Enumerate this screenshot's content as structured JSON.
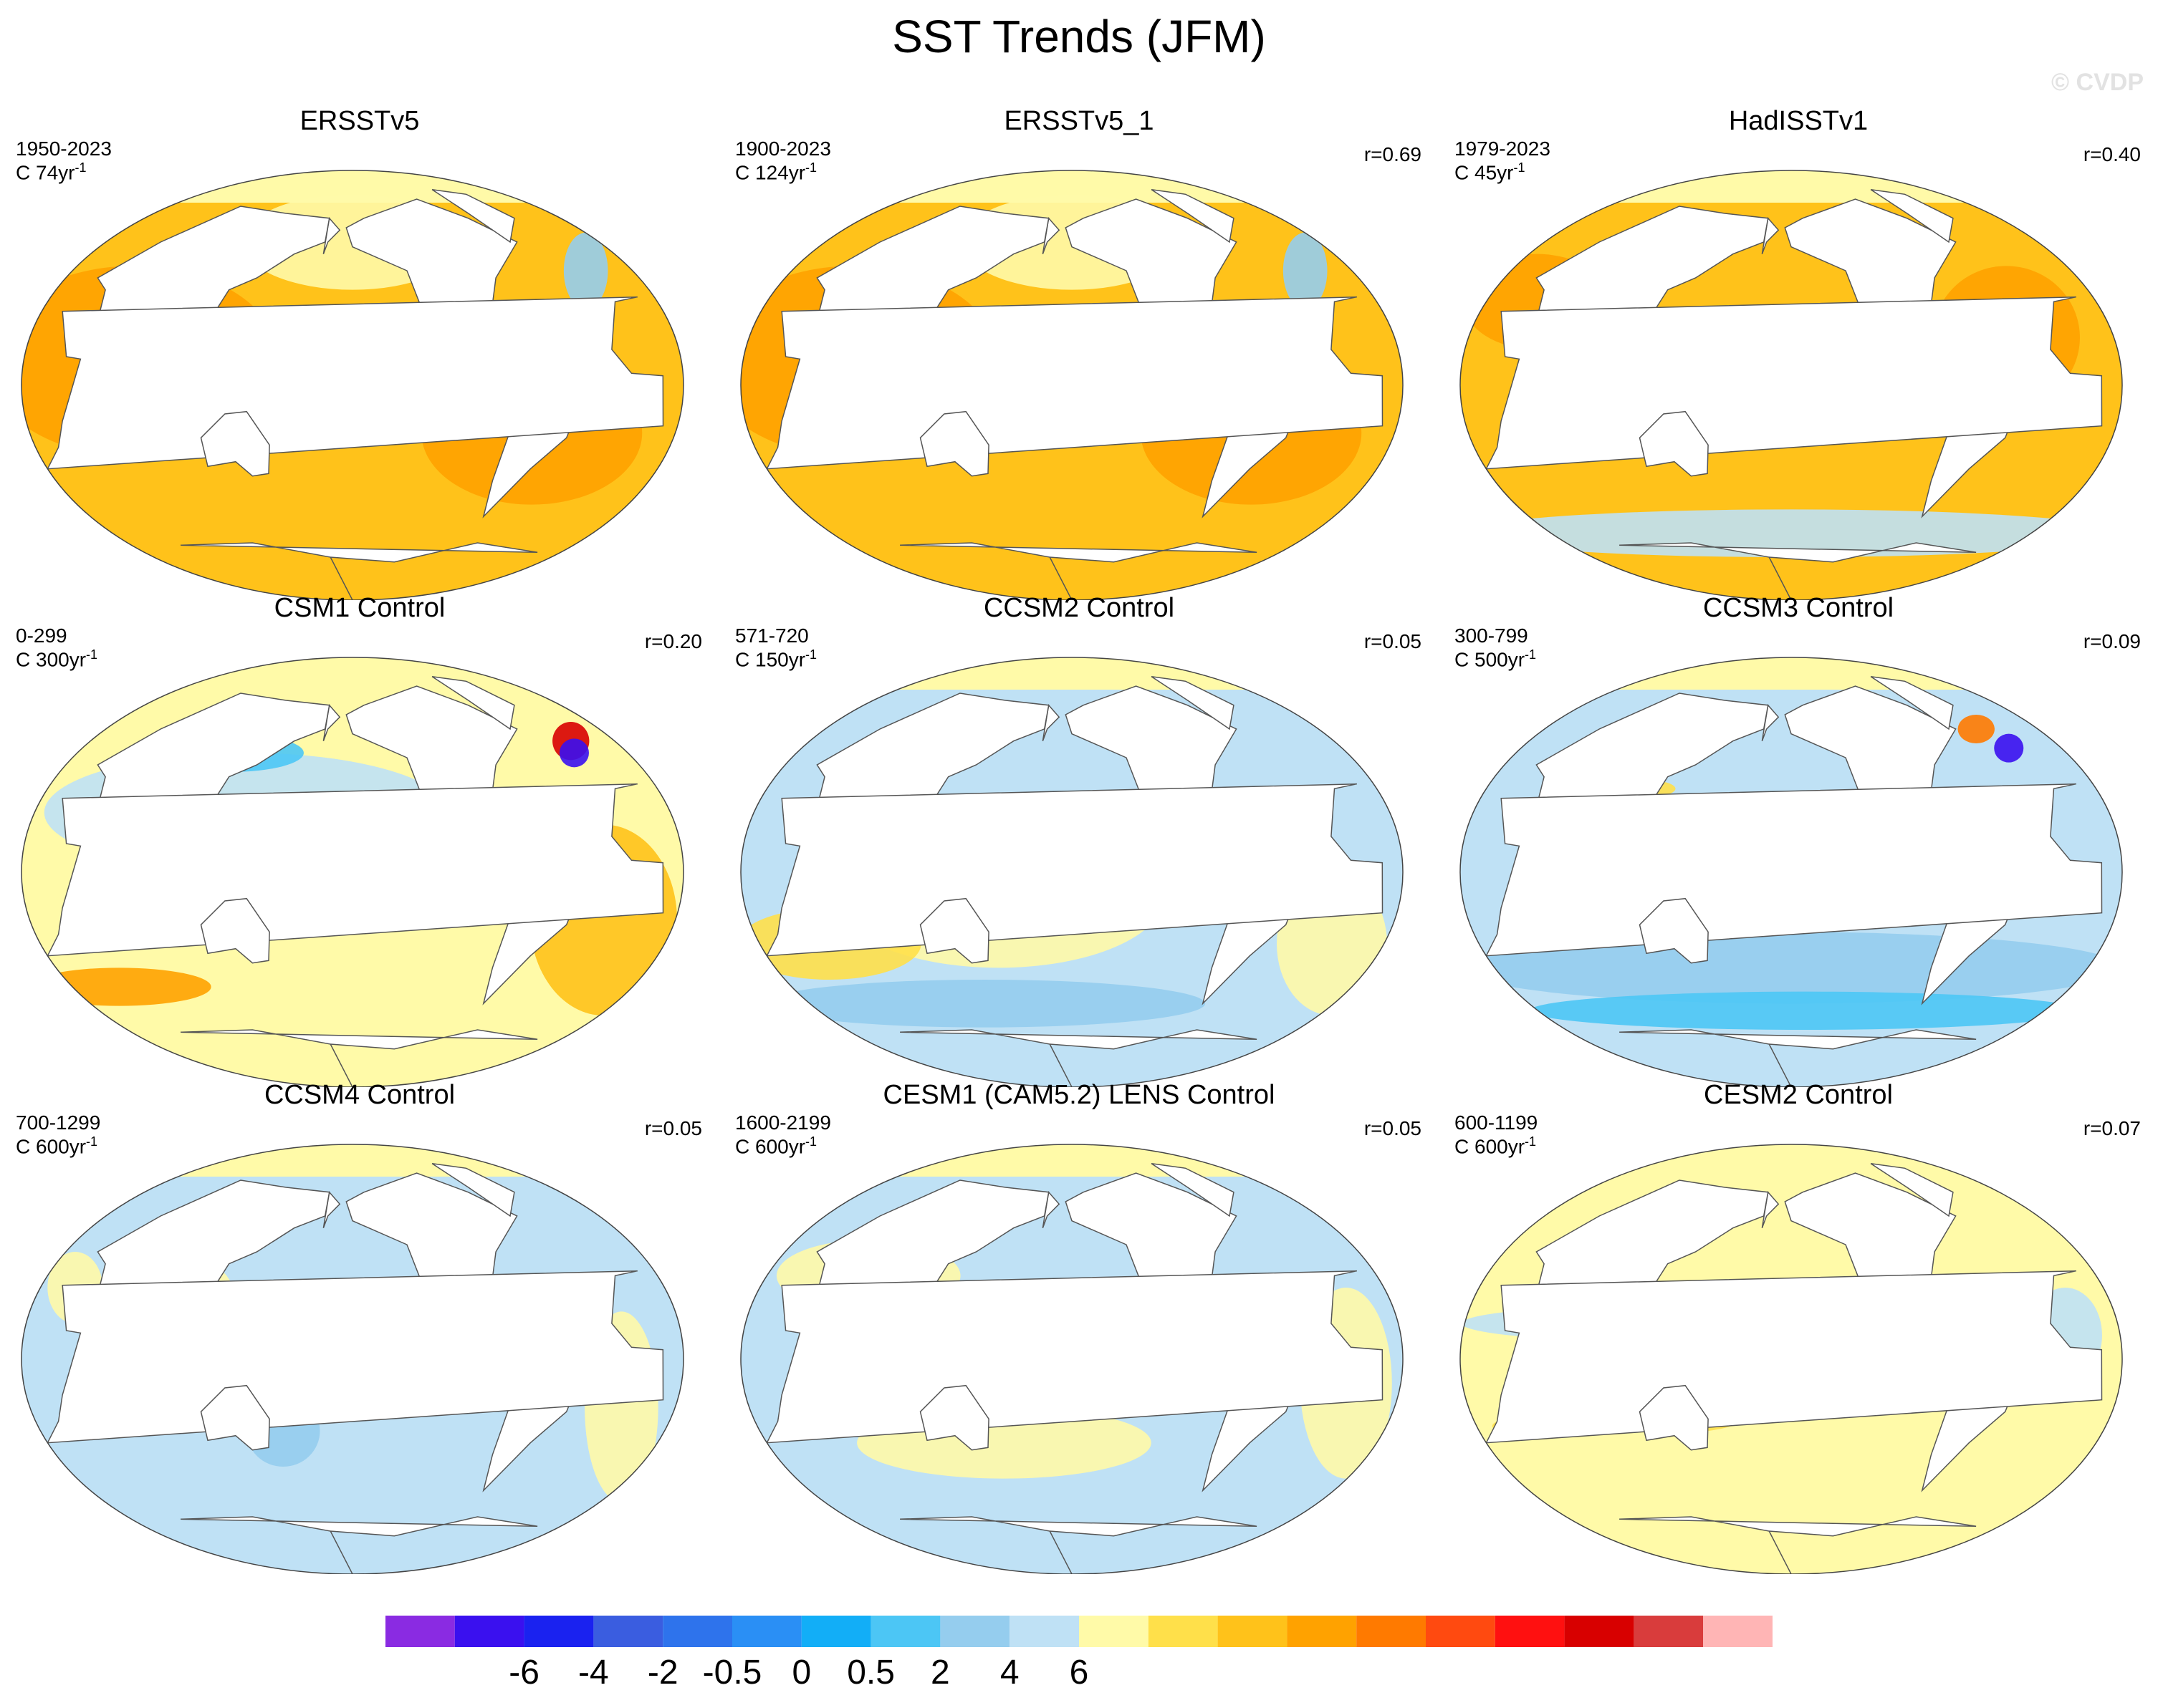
{
  "title": "SST Trends (JFM)",
  "watermark": "© CVDP",
  "trend_prefix": "C ",
  "trend_units": "yr",
  "trend_exponent": "-1",
  "panels": [
    {
      "title": "ERSSTv5",
      "years": "1950-2023",
      "trend": "74",
      "corr": "",
      "style": "warm"
    },
    {
      "title": "ERSSTv5_1",
      "years": "1900-2023",
      "trend": "124",
      "corr": "r=0.69",
      "style": "warm"
    },
    {
      "title": "HadISSTv1",
      "years": "1979-2023",
      "trend": "45",
      "corr": "r=0.40",
      "style": "had"
    },
    {
      "title": "CSM1 Control",
      "years": "0-299",
      "trend": "300",
      "corr": "r=0.20",
      "style": "mixwarm"
    },
    {
      "title": "CCSM2 Control",
      "years": "571-720",
      "trend": "150",
      "corr": "r=0.05",
      "style": "mix"
    },
    {
      "title": "CCSM3 Control",
      "years": "300-799",
      "trend": "500",
      "corr": "r=0.09",
      "style": "cool"
    },
    {
      "title": "CCSM4 Control",
      "years": "700-1299",
      "trend": "600",
      "corr": "r=0.05",
      "style": "coolmix"
    },
    {
      "title": "CESM1 (CAM5.2) LENS Control",
      "years": "1600-2199",
      "trend": "600",
      "corr": "r=0.05",
      "style": "coolmix2"
    },
    {
      "title": "CESM2 Control",
      "years": "600-1199",
      "trend": "600",
      "corr": "r=0.07",
      "style": "pale"
    }
  ],
  "colorbar": {
    "colors": [
      "#8a2be2",
      "#3a10ef",
      "#1a22f0",
      "#3a5de0",
      "#2e73ec",
      "#2a8ff5",
      "#12aef7",
      "#4cc6f5",
      "#95cdee",
      "#bfe1f5",
      "#fffaa8",
      "#ffe04a",
      "#ffc21a",
      "#ffa200",
      "#ff7a00",
      "#ff4a10",
      "#ff1010",
      "#d80000",
      "#d93c3c",
      "#ffb5b5"
    ],
    "labels": [
      "-6",
      "-4",
      "-2",
      "-0.5",
      "0",
      "0.5",
      "2",
      "4",
      "6"
    ]
  }
}
